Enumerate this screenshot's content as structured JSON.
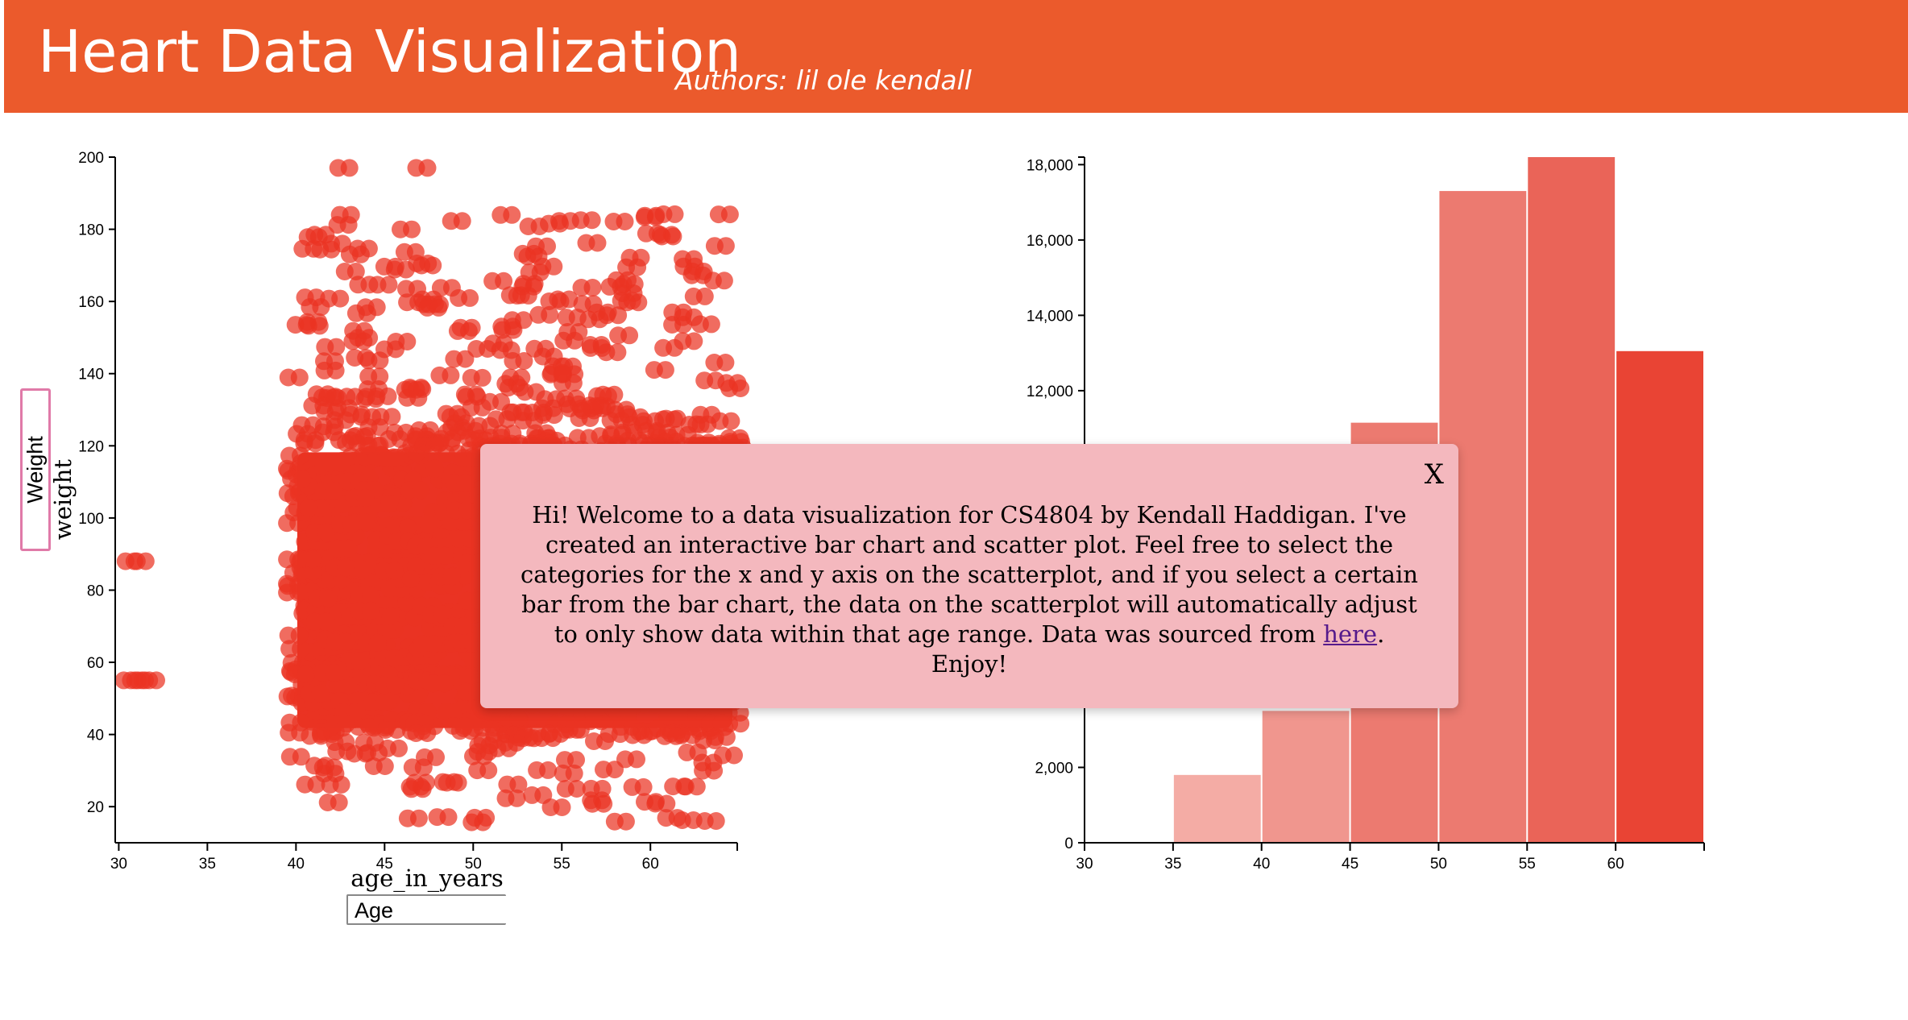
{
  "header": {
    "title": "Heart Data Visualization",
    "authors": "Authors: lil ole kendall"
  },
  "scatter": {
    "y_select_value": "Weight",
    "x_select_value": "Age",
    "y_axis_label": "weight",
    "x_axis_label": "age_in_years",
    "point_color": "#ea3323"
  },
  "bar": {
    "color_scale": [
      "#f4aca5",
      "#f0968e",
      "#ec7a70",
      "#ea6458",
      "#e94434"
    ]
  },
  "modal": {
    "close_label": "X",
    "text_before": "Hi! Welcome to a data visualization for CS4804 by Kendall Haddigan. I've created an interactive bar chart and scatter plot. Feel free to select the categories for the x and y axis on the scatterplot, and if you select a certain bar from the bar chart, the data on the scatterplot will automatically adjust to only show data within that age range. Data was sourced from ",
    "link_text": "here",
    "text_after": ". Enjoy!"
  },
  "chart_data": [
    {
      "type": "scatter",
      "title": "",
      "xlabel": "age_in_years",
      "ylabel": "weight",
      "xlim": [
        29.8,
        64.9
      ],
      "ylim": [
        10,
        200
      ],
      "x_ticks": [
        "30",
        "35",
        "40",
        "45",
        "50",
        "55",
        "60"
      ],
      "y_ticks": [
        "20",
        "40",
        "60",
        "80",
        "100",
        "120",
        "140",
        "160",
        "180",
        "200"
      ],
      "clusters": [
        {
          "x": [
            39.8,
            64.9
          ],
          "y": [
            40,
            120
          ],
          "density": "dense"
        },
        {
          "x": [
            39.8,
            64.9
          ],
          "y": [
            120,
            200
          ],
          "density": "sparse"
        },
        {
          "x": [
            39.8,
            64.9
          ],
          "y": [
            10,
            40
          ],
          "density": "sparse"
        }
      ],
      "outliers": [
        [
          30.7,
          88
        ],
        [
          31.2,
          88
        ],
        [
          30.6,
          55
        ],
        [
          31.0,
          55
        ],
        [
          31.4,
          55
        ],
        [
          31.8,
          55
        ],
        [
          42.7,
          197
        ],
        [
          47.1,
          197
        ]
      ]
    },
    {
      "type": "bar",
      "title": "",
      "categories": [
        "35-40",
        "40-45",
        "45-50",
        "50-55",
        "55-60",
        "60-65"
      ],
      "values": [
        1800,
        3500,
        11150,
        17300,
        18200,
        13050
      ],
      "x_ticks": [
        "30",
        "35",
        "40",
        "45",
        "50",
        "55",
        "60"
      ],
      "y_ticks": [
        "0",
        "2,000",
        "12,000",
        "14,000",
        "16,000",
        "18,000"
      ],
      "xlim": [
        30,
        65
      ],
      "ylim": [
        0,
        18200
      ]
    }
  ]
}
